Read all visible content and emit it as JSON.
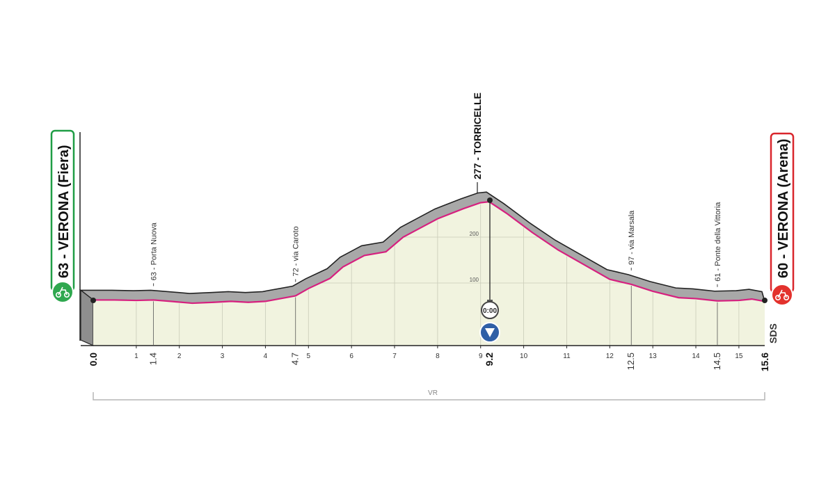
{
  "chart_data": {
    "type": "area",
    "title": "",
    "x_ticks": [
      1,
      2,
      3,
      4,
      5,
      6,
      7,
      8,
      9,
      10,
      11,
      12,
      13,
      14,
      15
    ],
    "y_ticks": [
      100,
      200
    ],
    "xlim": [
      0,
      15.6
    ],
    "profile": {
      "x": [
        0,
        0.5,
        1,
        1.4,
        1.8,
        2.3,
        2.8,
        3.2,
        3.6,
        4.0,
        4.7,
        5.0,
        5.5,
        5.8,
        6.3,
        6.8,
        7.2,
        7.6,
        8.0,
        8.6,
        9.0,
        9.2,
        9.6,
        10.2,
        10.8,
        11.4,
        12.0,
        12.5,
        13.0,
        13.6,
        14.0,
        14.5,
        15.0,
        15.3,
        15.6
      ],
      "y": [
        63,
        63,
        62,
        63,
        60,
        56,
        58,
        60,
        58,
        60,
        72,
        88,
        110,
        135,
        160,
        168,
        200,
        220,
        240,
        262,
        275,
        277,
        252,
        210,
        172,
        140,
        108,
        97,
        82,
        68,
        66,
        61,
        62,
        65,
        60
      ]
    },
    "start": {
      "km": "0.0",
      "label": "63 - VERONA (Fiera)"
    },
    "finish": {
      "km": "15.6",
      "label": "60 - VERONA (Arena)"
    },
    "summit": {
      "km": "9.2",
      "label": "277 - TORRICELLE",
      "time_check": "0:00"
    },
    "waypoints": [
      {
        "km": 1.4,
        "km_label": "1.4",
        "label": "63 - Porta Nuova"
      },
      {
        "km": 4.7,
        "km_label": "4.7",
        "label": "72 - via Caroto"
      },
      {
        "km": 12.5,
        "km_label": "12.5",
        "label": "97 - via Marsala"
      },
      {
        "km": 14.5,
        "km_label": "14.5",
        "label": "61 - Ponte della Vittoria"
      }
    ],
    "province": "VR",
    "logo": "SDS",
    "colors": {
      "road": "#d6207f",
      "fill": "#f1f3df",
      "ridge": "#a8a8a8",
      "start_border": "#1f9d45",
      "finish_border": "#d9262c",
      "badge_start": "#2fa84f",
      "badge_finish": "#e3322d",
      "arrow": "#2f5fa6"
    }
  }
}
